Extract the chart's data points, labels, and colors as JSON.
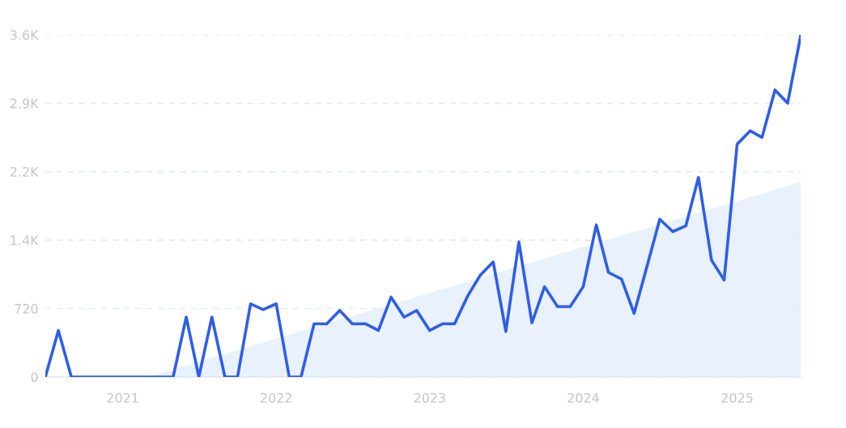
{
  "chart_data": {
    "type": "line",
    "x": [
      "2020-07",
      "2020-08",
      "2020-09",
      "2020-10",
      "2020-11",
      "2020-12",
      "2021-01",
      "2021-02",
      "2021-03",
      "2021-04",
      "2021-05",
      "2021-06",
      "2021-07",
      "2021-08",
      "2021-09",
      "2021-10",
      "2021-11",
      "2021-12",
      "2022-01",
      "2022-02",
      "2022-03",
      "2022-04",
      "2022-05",
      "2022-06",
      "2022-07",
      "2022-08",
      "2022-09",
      "2022-10",
      "2022-11",
      "2022-12",
      "2023-01",
      "2023-02",
      "2023-03",
      "2023-04",
      "2023-05",
      "2023-06",
      "2023-07",
      "2023-08",
      "2023-09",
      "2023-10",
      "2023-11",
      "2023-12",
      "2024-01",
      "2024-02",
      "2024-03",
      "2024-04",
      "2024-05",
      "2024-06",
      "2024-07",
      "2024-08",
      "2024-09",
      "2024-10",
      "2024-11",
      "2024-12",
      "2025-01",
      "2025-02",
      "2025-03",
      "2025-04",
      "2025-05",
      "2025-06"
    ],
    "series": [
      {
        "color": "#2f5ee8",
        "values": [
          0,
          490,
          0,
          0,
          0,
          0,
          0,
          0,
          0,
          0,
          0,
          630,
          0,
          630,
          0,
          0,
          770,
          710,
          770,
          0,
          0,
          560,
          560,
          700,
          560,
          560,
          490,
          840,
          630,
          700,
          490,
          560,
          560,
          850,
          1070,
          1210,
          480,
          1420,
          570,
          950,
          740,
          740,
          950,
          1600,
          1100,
          1030,
          670,
          1170,
          1660,
          1530,
          1590,
          2100,
          1230,
          1020,
          2450,
          2590,
          2520,
          3020,
          2880,
          3590
        ]
      },
      {
        "type": "area",
        "color": "#e6effc",
        "x": [
          "2021-03",
          "2025-06"
        ],
        "values": [
          0,
          2050
        ]
      }
    ],
    "xlim": [
      "2020-07",
      "2025-06"
    ],
    "xticks": [
      {
        "value": "2021-01",
        "label": "2021"
      },
      {
        "value": "2022-01",
        "label": "2022"
      },
      {
        "value": "2023-01",
        "label": "2023"
      },
      {
        "value": "2024-01",
        "label": "2024"
      },
      {
        "value": "2025-01",
        "label": "2025"
      }
    ],
    "ylim": [
      0,
      3600
    ],
    "yticks": [
      0,
      720,
      {
        "value": 1440,
        "label": "1.4K"
      },
      {
        "value": 2160,
        "label": "2.2K"
      },
      {
        "value": 2880,
        "label": "2.9K"
      },
      {
        "value": 3600,
        "label": "3.6K"
      }
    ],
    "grid": "y",
    "line_style": "solid",
    "marker": "none"
  }
}
